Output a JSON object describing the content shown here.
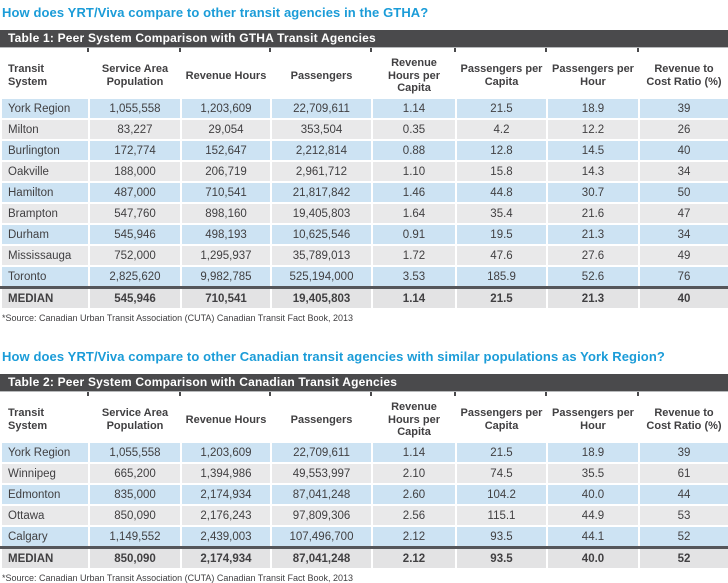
{
  "colors": {
    "heading_blue": "#1b9cd8",
    "title_bar": "#4a4a4c",
    "row_blue": "#cde3f3",
    "row_gray": "#e9e9ea",
    "median_gray": "#e3e3e4",
    "median_line": "#55565a",
    "text": "#414042"
  },
  "sections": [
    {
      "heading": "How does YRT/Viva compare to other transit agencies in the GTHA?",
      "table": {
        "title": "Table 1: Peer System Comparison with GTHA Transit Agencies",
        "columns": [
          "Transit System",
          "Service Area Population",
          "Revenue Hours",
          "Passengers",
          "Revenue Hours per Capita",
          "Passengers per Capita",
          "Passengers per Hour",
          "Revenue to Cost Ratio (%)"
        ],
        "rows": [
          [
            "York Region",
            "1,055,558",
            "1,203,609",
            "22,709,611",
            "1.14",
            "21.5",
            "18.9",
            "39"
          ],
          [
            "Milton",
            "83,227",
            "29,054",
            "353,504",
            "0.35",
            "4.2",
            "12.2",
            "26"
          ],
          [
            "Burlington",
            "172,774",
            "152,647",
            "2,212,814",
            "0.88",
            "12.8",
            "14.5",
            "40"
          ],
          [
            "Oakville",
            "188,000",
            "206,719",
            "2,961,712",
            "1.10",
            "15.8",
            "14.3",
            "34"
          ],
          [
            "Hamilton",
            "487,000",
            "710,541",
            "21,817,842",
            "1.46",
            "44.8",
            "30.7",
            "50"
          ],
          [
            "Brampton",
            "547,760",
            "898,160",
            "19,405,803",
            "1.64",
            "35.4",
            "21.6",
            "47"
          ],
          [
            "Durham",
            "545,946",
            "498,193",
            "10,625,546",
            "0.91",
            "19.5",
            "21.3",
            "34"
          ],
          [
            "Mississauga",
            "752,000",
            "1,295,937",
            "35,789,013",
            "1.72",
            "47.6",
            "27.6",
            "49"
          ],
          [
            "Toronto",
            "2,825,620",
            "9,982,785",
            "525,194,000",
            "3.53",
            "185.9",
            "52.6",
            "76"
          ]
        ],
        "median_row": [
          "MEDIAN",
          "545,946",
          "710,541",
          "19,405,803",
          "1.14",
          "21.5",
          "21.3",
          "40"
        ],
        "source": "*Source: Canadian Urban Transit Association (CUTA) Canadian Transit Fact Book, 2013"
      }
    },
    {
      "heading": "How does YRT/Viva compare to other Canadian transit agencies with similar populations as York Region?",
      "table": {
        "title": "Table 2: Peer System Comparison with Canadian Transit Agencies",
        "columns": [
          "Transit System",
          "Service Area Population",
          "Revenue Hours",
          "Passengers",
          "Revenue Hours per Capita",
          "Passengers per Capita",
          "Passengers per Hour",
          "Revenue to Cost Ratio (%)"
        ],
        "rows": [
          [
            "York Region",
            "1,055,558",
            "1,203,609",
            "22,709,611",
            "1.14",
            "21.5",
            "18.9",
            "39"
          ],
          [
            "Winnipeg",
            "665,200",
            "1,394,986",
            "49,553,997",
            "2.10",
            "74.5",
            "35.5",
            "61"
          ],
          [
            "Edmonton",
            "835,000",
            "2,174,934",
            "87,041,248",
            "2.60",
            "104.2",
            "40.0",
            "44"
          ],
          [
            "Ottawa",
            "850,090",
            "2,176,243",
            "97,809,306",
            "2.56",
            "115.1",
            "44.9",
            "53"
          ],
          [
            "Calgary",
            "1,149,552",
            "2,439,003",
            "107,496,700",
            "2.12",
            "93.5",
            "44.1",
            "52"
          ]
        ],
        "median_row": [
          "MEDIAN",
          "850,090",
          "2,174,934",
          "87,041,248",
          "2.12",
          "93.5",
          "40.0",
          "52"
        ],
        "source": "*Source: Canadian Urban Transit Association (CUTA) Canadian Transit Fact Book, 2013"
      }
    }
  ]
}
